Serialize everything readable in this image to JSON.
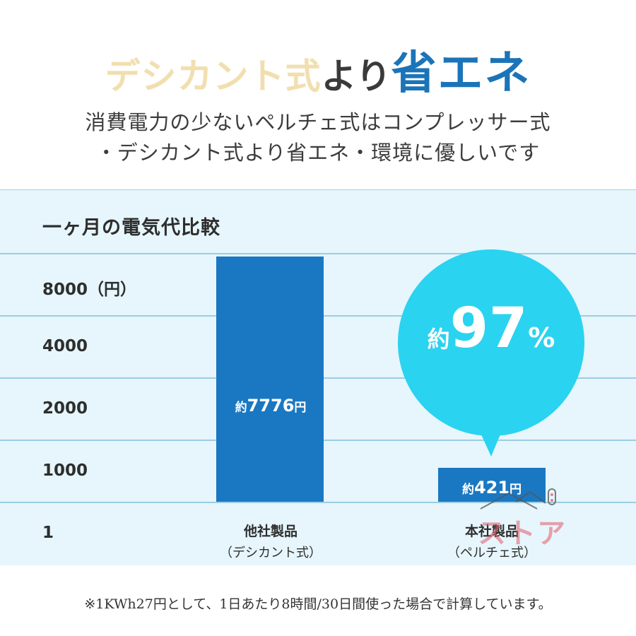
{
  "headline": {
    "part1": "デシカント式",
    "part2": "より",
    "part3": "省エネ"
  },
  "subtitle": {
    "line1": "消費電力の少ないペルチェ式はコンプレッサー式",
    "line2": "・デシカント式より省エネ・環境に優しいです"
  },
  "colors": {
    "bar": "#1a78c2",
    "bubble": "#2ad3ef",
    "headline_accent": "#1b74b8",
    "headline_pale": "#f1dfb0",
    "panel_bg": "#e6f6fc"
  },
  "chart_data": {
    "type": "bar",
    "title": "一ヶ月の電気代比較",
    "y_ticks": [
      "8000（円）",
      "4000",
      "2000",
      "1000",
      "1"
    ],
    "categories": [
      {
        "name": "他社製品",
        "sub": "（デシカント式）"
      },
      {
        "name": "本社製品",
        "sub": "（ペルチェ式）"
      }
    ],
    "values": [
      7776,
      421
    ],
    "unit": "円",
    "data_labels": [
      {
        "prefix": "約",
        "value": "7776",
        "suffix": "円"
      },
      {
        "prefix": "約",
        "value": "421",
        "suffix": "円"
      }
    ],
    "callout": {
      "prefix": "約",
      "value": "97",
      "suffix": "%"
    },
    "grid": true
  },
  "logo_text": "ストア",
  "footnote": "※1KWh27円として、1日あたり8時間/30日間使った場合で計算しています。"
}
